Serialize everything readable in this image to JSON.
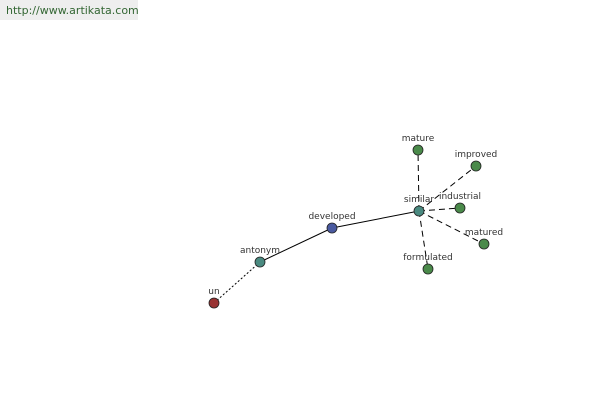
{
  "header": {
    "url": "http://www.artikata.com"
  },
  "nodes": [
    {
      "label": "un"
    },
    {
      "label": "antonym"
    },
    {
      "label": "developed"
    },
    {
      "label": "similar"
    },
    {
      "label": "mature"
    },
    {
      "label": "improved"
    },
    {
      "label": "industrial"
    },
    {
      "label": "matured"
    },
    {
      "label": "formulated"
    }
  ]
}
